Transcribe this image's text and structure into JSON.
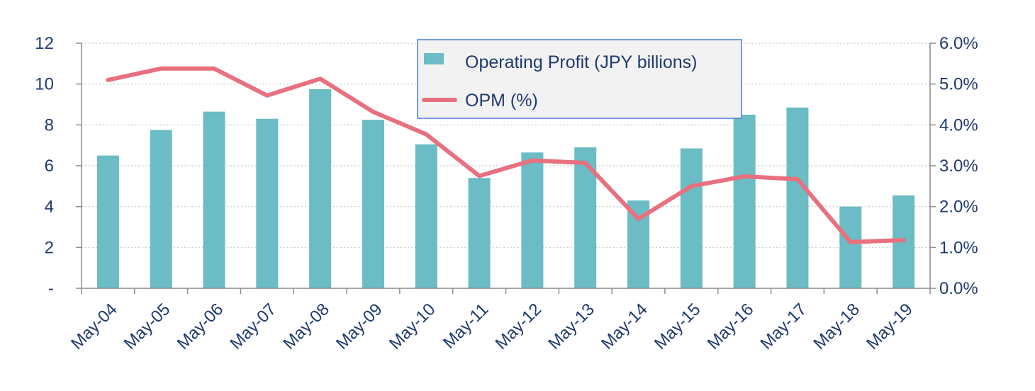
{
  "chart_data": {
    "type": "bar",
    "title": "",
    "xlabel": "",
    "ylabel": "",
    "y2label": "",
    "categories": [
      "May-04",
      "May-05",
      "May-06",
      "May-07",
      "May-08",
      "May-09",
      "May-10",
      "May-11",
      "May-12",
      "May-13",
      "May-14",
      "May-15",
      "May-16",
      "May-17",
      "May-18",
      "May-19"
    ],
    "series": [
      {
        "name": "Operating Profit (JPY billions)",
        "type": "bar",
        "axis": "left",
        "color": "#6bbcc4",
        "values": [
          6.5,
          7.75,
          8.65,
          8.3,
          9.75,
          8.25,
          7.05,
          5.4,
          6.65,
          6.9,
          4.3,
          6.85,
          8.5,
          8.85,
          4.0,
          4.55
        ]
      },
      {
        "name": "OPM (%)",
        "type": "line",
        "axis": "right",
        "color": "#e8707f",
        "values": [
          5.1,
          5.38,
          5.38,
          4.72,
          5.13,
          4.32,
          3.77,
          2.75,
          3.13,
          3.07,
          1.7,
          2.5,
          2.74,
          2.67,
          1.13,
          1.18
        ]
      }
    ],
    "ylim": [
      0,
      12
    ],
    "y_ticks": [
      0,
      2,
      4,
      6,
      8,
      10,
      12
    ],
    "y_tick_labels": [
      "-",
      "2",
      "4",
      "6",
      "8",
      "10",
      "12"
    ],
    "y2lim": [
      0,
      6
    ],
    "y2_ticks": [
      0,
      1,
      2,
      3,
      4,
      5,
      6
    ],
    "y2_tick_labels": [
      "0.0%",
      "1.0%",
      "2.0%",
      "3.0%",
      "4.0%",
      "5.0%",
      "6.0%"
    ],
    "grid": true,
    "legend_position": "top-center"
  }
}
